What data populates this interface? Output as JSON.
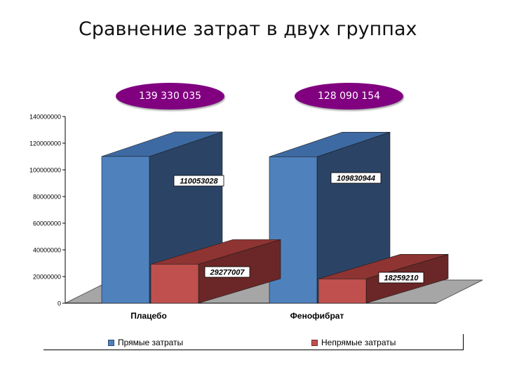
{
  "title": "Сравнение затрат в двух группах",
  "totals": [
    "139 330 035",
    "128 090 154"
  ],
  "colors": {
    "direct_front": "#4f81bd",
    "direct_side": "#2b4466",
    "direct_top": "#3e6aa3",
    "indirect_front": "#c0504d",
    "indirect_side": "#6b2727",
    "indirect_top": "#8e3432",
    "total_badge": "#800080",
    "floor": "#a6a6a6"
  },
  "chart_data": {
    "type": "bar",
    "subtype": "3d-clustered",
    "categories": [
      "Плацебо",
      "Фенофибрат"
    ],
    "series": [
      {
        "name": "Прямые затраты",
        "values": [
          110053028,
          109830944
        ]
      },
      {
        "name": "Непрямые затраты",
        "values": [
          29277007,
          18259210
        ]
      }
    ],
    "data_labels": [
      [
        "110053028",
        "109830944"
      ],
      [
        "29277007",
        "18259210"
      ]
    ],
    "ylim": [
      0,
      140000000
    ],
    "yticks": [
      0,
      20000000,
      40000000,
      60000000,
      80000000,
      100000000,
      120000000,
      140000000
    ],
    "ytick_labels": [
      "0",
      "20000000",
      "40000000",
      "60000000",
      "80000000",
      "100000000",
      "120000000",
      "140000000"
    ],
    "legend_position": "bottom",
    "grid": false
  }
}
